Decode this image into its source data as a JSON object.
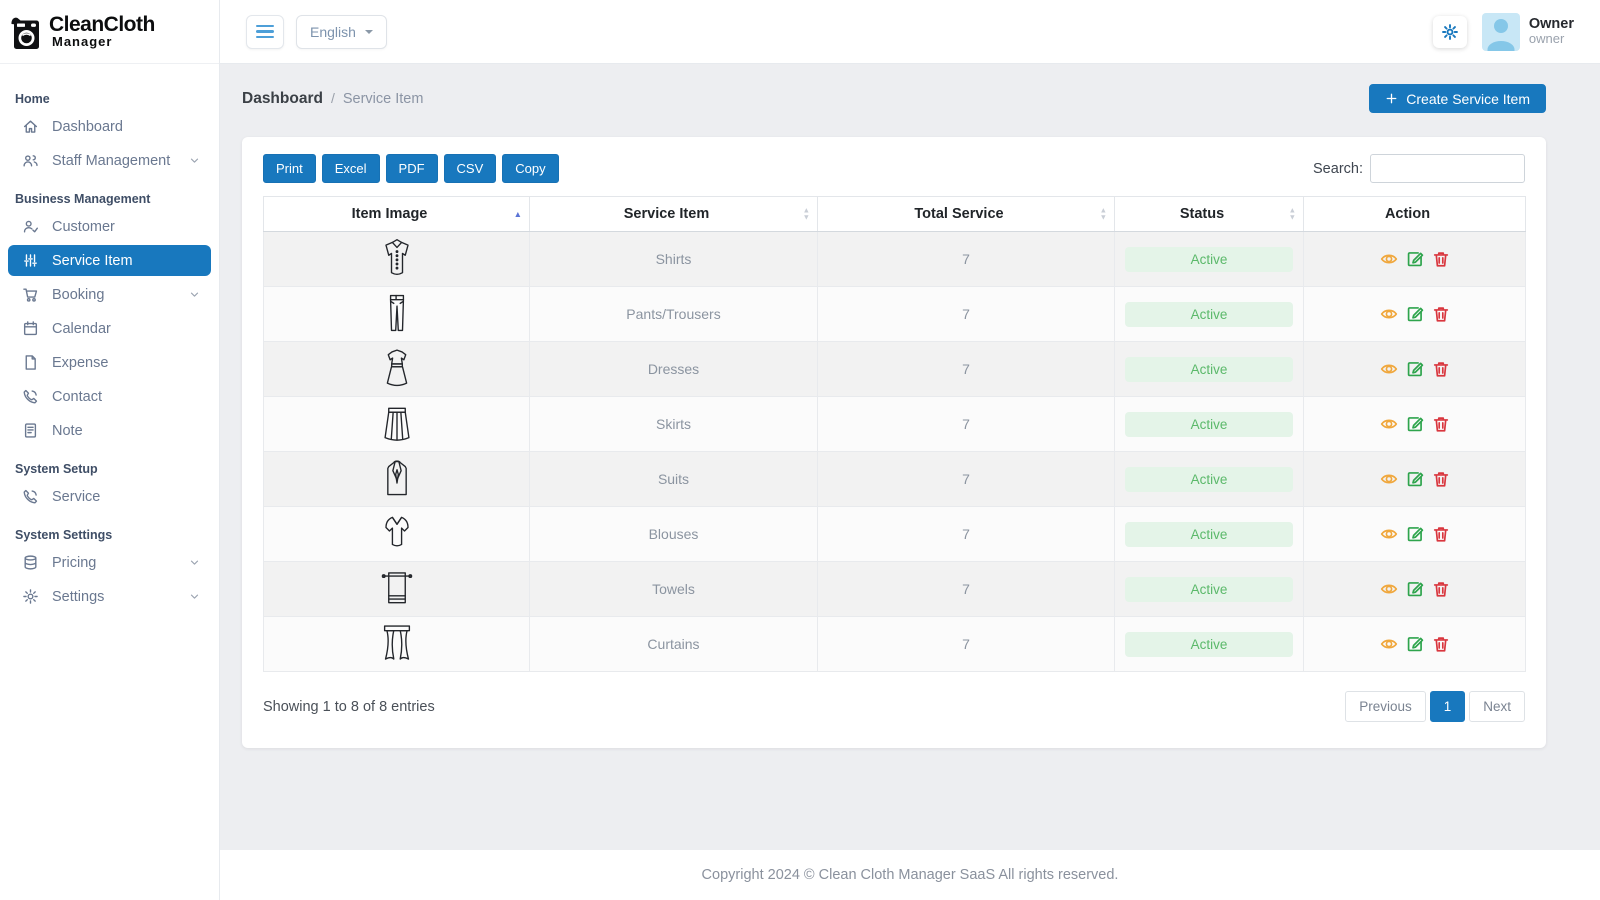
{
  "brand": {
    "name_top": "CleanCloth",
    "name_bottom": "Manager"
  },
  "topbar": {
    "language": "English",
    "user_name": "Owner",
    "user_role": "owner"
  },
  "sidebar": {
    "items": [
      {
        "kind": "header",
        "label": "Home"
      },
      {
        "kind": "link",
        "label": "Dashboard",
        "icon": "home-icon"
      },
      {
        "kind": "link",
        "label": "Staff Management",
        "icon": "people-icon",
        "chevron": true
      },
      {
        "kind": "header",
        "label": "Business Management"
      },
      {
        "kind": "link",
        "label": "Customer",
        "icon": "person-check-icon"
      },
      {
        "kind": "link",
        "label": "Service Item",
        "icon": "sliders-icon",
        "active": true
      },
      {
        "kind": "link",
        "label": "Booking",
        "icon": "cart-icon",
        "chevron": true
      },
      {
        "kind": "link",
        "label": "Calendar",
        "icon": "calendar-icon"
      },
      {
        "kind": "link",
        "label": "Expense",
        "icon": "file-icon"
      },
      {
        "kind": "link",
        "label": "Contact",
        "icon": "phone-icon"
      },
      {
        "kind": "link",
        "label": "Note",
        "icon": "note-icon"
      },
      {
        "kind": "header",
        "label": "System Setup"
      },
      {
        "kind": "link",
        "label": "Service",
        "icon": "phone-icon"
      },
      {
        "kind": "header",
        "label": "System Settings"
      },
      {
        "kind": "link",
        "label": "Pricing",
        "icon": "database-icon",
        "chevron": true
      },
      {
        "kind": "link",
        "label": "Settings",
        "icon": "gear-icon",
        "chevron": true
      }
    ]
  },
  "page": {
    "breadcrumb_parent": "Dashboard",
    "breadcrumb_separator": "/",
    "breadcrumb_current": "Service Item",
    "create_button_label": "Create Service Item"
  },
  "toolbar": {
    "export_buttons": [
      "Print",
      "Excel",
      "PDF",
      "CSV",
      "Copy"
    ],
    "search_label": "Search:",
    "search_value": ""
  },
  "table": {
    "columns": [
      {
        "label": "Item Image",
        "sort": "asc"
      },
      {
        "label": "Service Item",
        "sort": "both"
      },
      {
        "label": "Total Service",
        "sort": "both"
      },
      {
        "label": "Status",
        "sort": "both"
      },
      {
        "label": "Action",
        "sort": "none"
      }
    ],
    "action_icons": [
      "eye-icon",
      "edit-icon",
      "trash-icon"
    ],
    "rows": [
      {
        "icon": "shirt-icon",
        "service_item": "Shirts",
        "total_service": "7",
        "status": "Active"
      },
      {
        "icon": "pants-icon",
        "service_item": "Pants/Trousers",
        "total_service": "7",
        "status": "Active"
      },
      {
        "icon": "dress-icon",
        "service_item": "Dresses",
        "total_service": "7",
        "status": "Active"
      },
      {
        "icon": "skirt-icon",
        "service_item": "Skirts",
        "total_service": "7",
        "status": "Active"
      },
      {
        "icon": "suit-icon",
        "service_item": "Suits",
        "total_service": "7",
        "status": "Active"
      },
      {
        "icon": "blouse-icon",
        "service_item": "Blouses",
        "total_service": "7",
        "status": "Active"
      },
      {
        "icon": "towel-icon",
        "service_item": "Towels",
        "total_service": "7",
        "status": "Active"
      },
      {
        "icon": "curtains-icon",
        "service_item": "Curtains",
        "total_service": "7",
        "status": "Active"
      }
    ]
  },
  "pagination": {
    "summary": "Showing 1 to 8 of 8 entries",
    "previous_label": "Previous",
    "pages": [
      "1"
    ],
    "active_page": "1",
    "next_label": "Next"
  },
  "footer": {
    "copyright": "Copyright 2024 © Clean Cloth Manager SaaS All rights reserved."
  },
  "colors": {
    "primary": "#1878be",
    "sidebar_active_bg": "#1878be",
    "status_badge_bg": "#e4f4e8",
    "status_badge_text": "#5bb96a",
    "view_icon": "#f0a73c",
    "edit_icon": "#2ea44c",
    "delete_icon": "#d9363e"
  }
}
